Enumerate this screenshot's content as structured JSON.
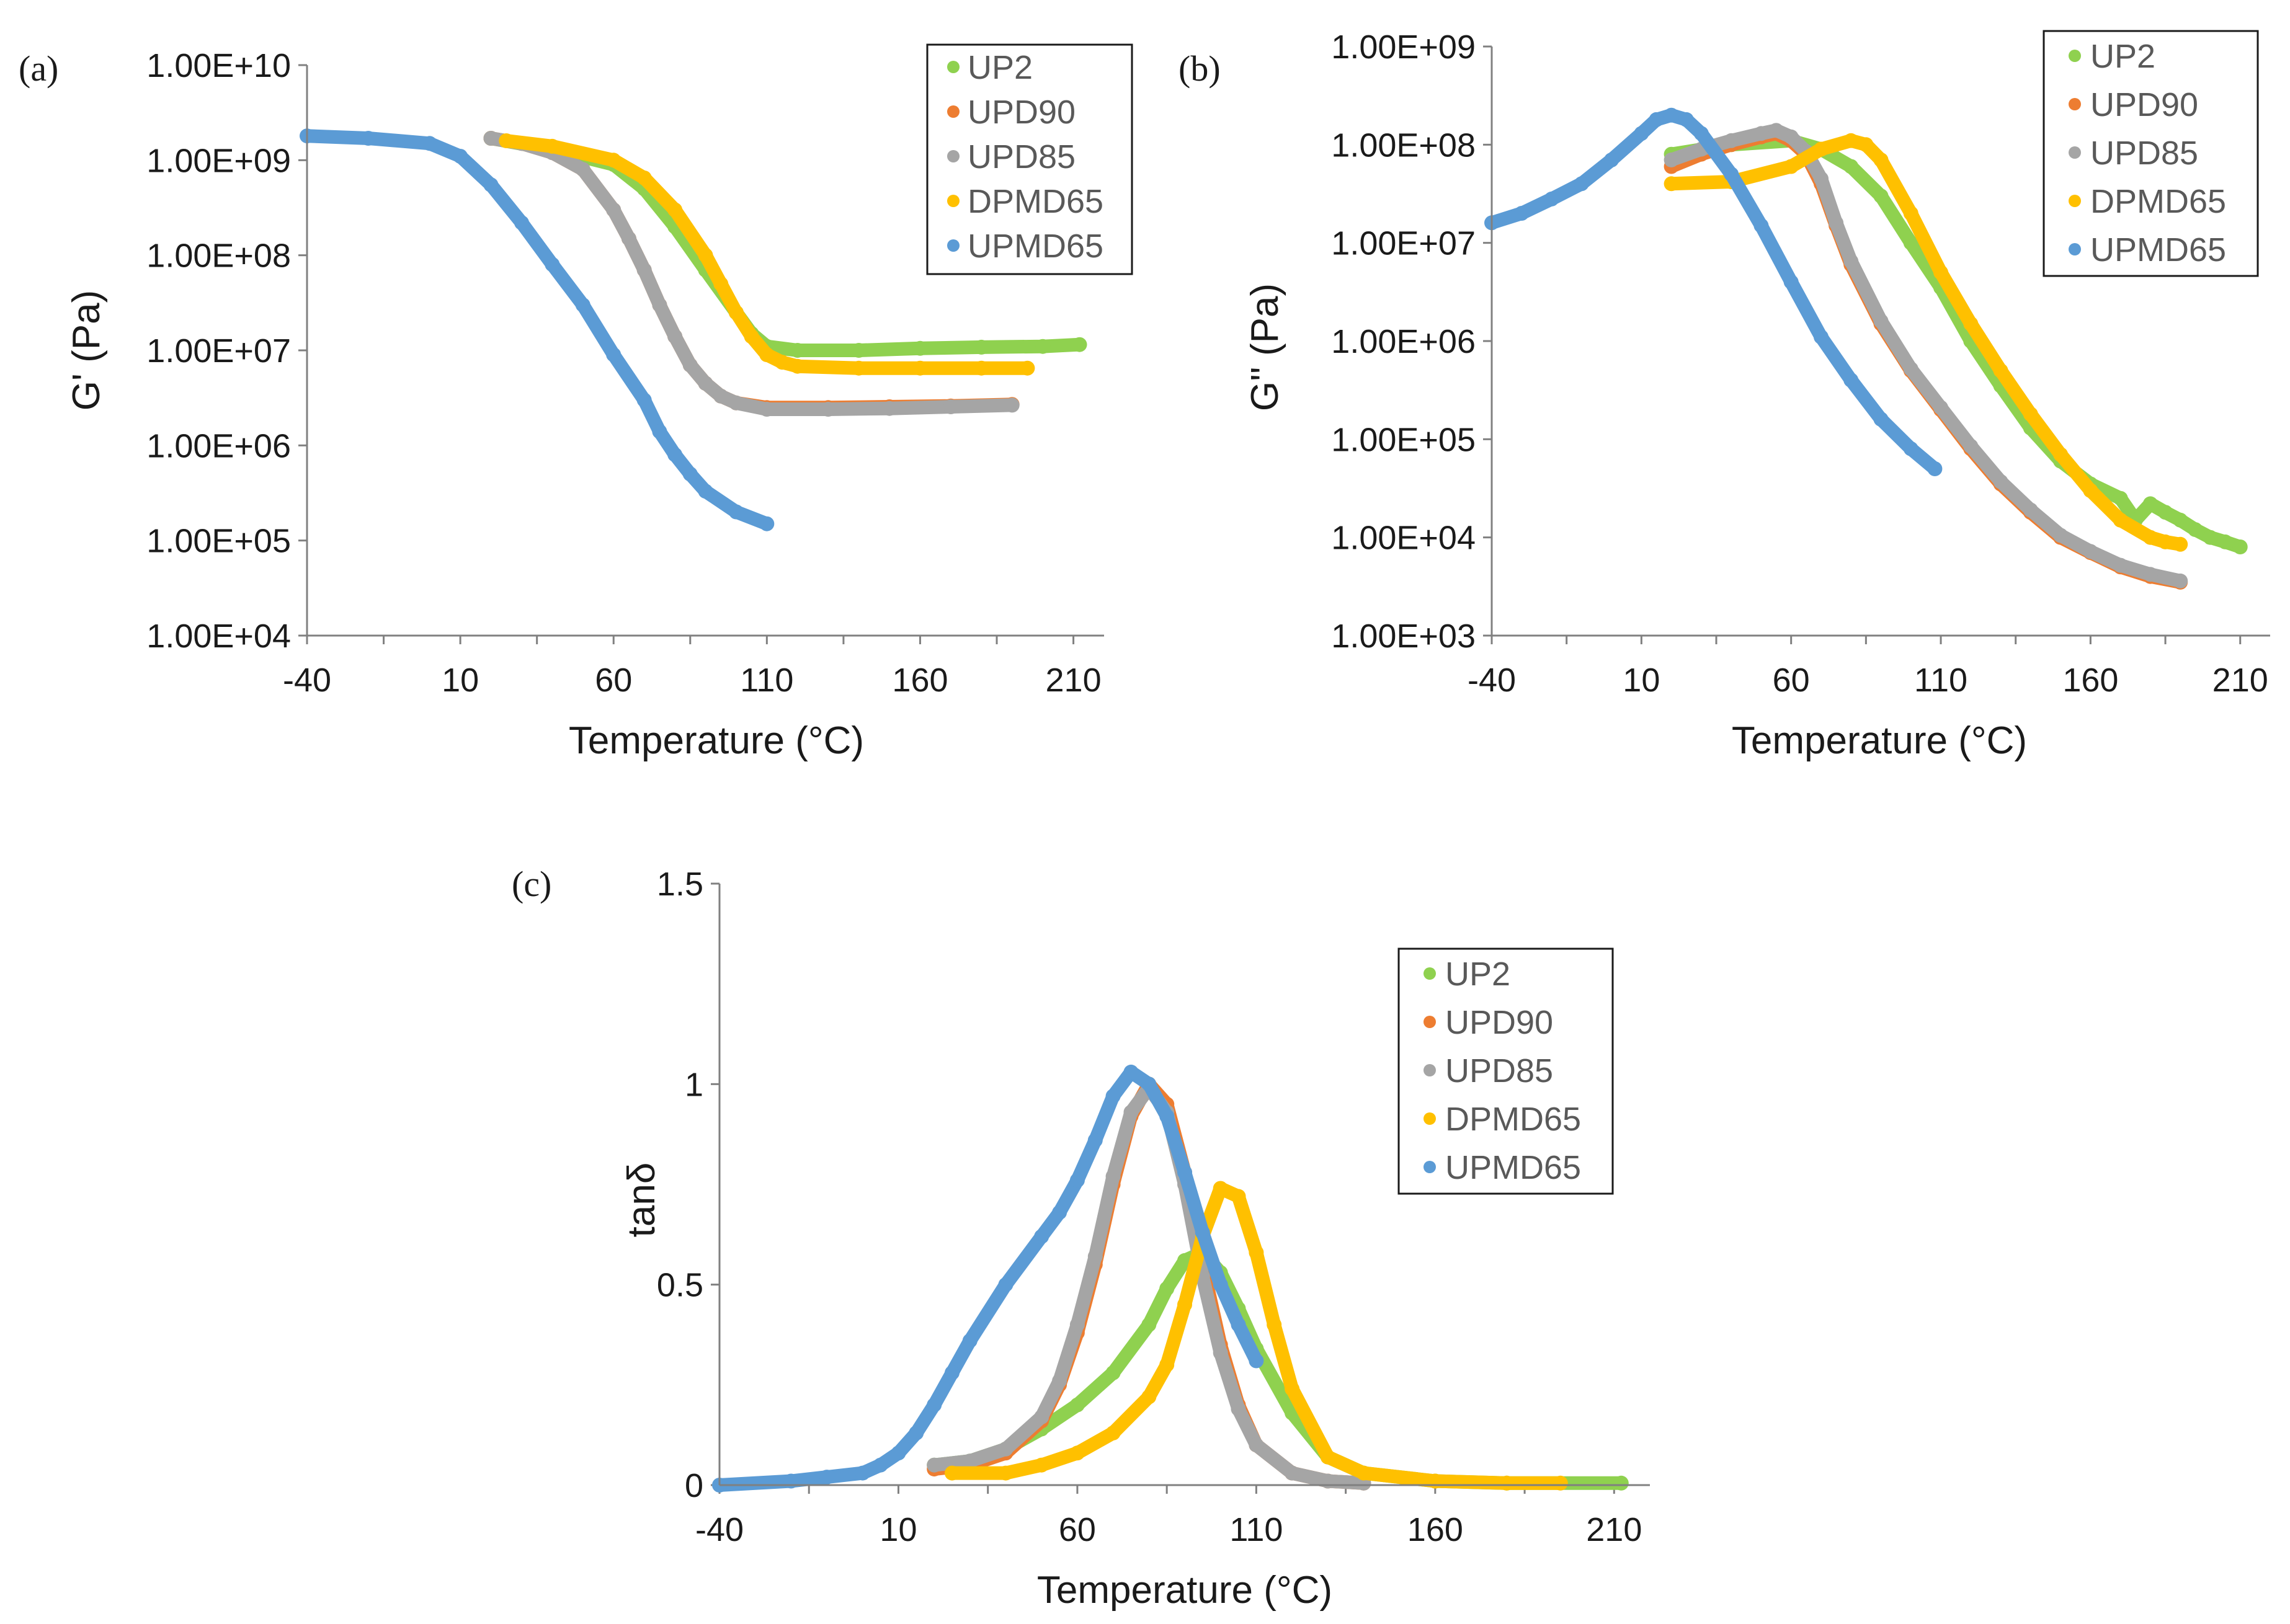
{
  "figure": {
    "series_colors": {
      "UP2": "#8fd14f",
      "UPD90": "#ed7d31",
      "UPD85": "#a5a5a5",
      "DPMD65": "#ffc000",
      "UPMD65": "#5b9bd5"
    }
  },
  "chart_data": [
    {
      "id": "a",
      "panel_label": "(a)",
      "type": "scatter",
      "yscale": "log",
      "xlabel": "Temperature (°C)",
      "ylabel": "G' (Pa)",
      "xlim": [
        -40,
        220
      ],
      "ylim": [
        10000,
        10000000000
      ],
      "x_tick_labels": [
        "-40",
        "10",
        "60",
        "110",
        "160",
        "210"
      ],
      "y_tick_labels": [
        "1.00E+04",
        "1.00E+05",
        "1.00E+06",
        "1.00E+07",
        "1.00E+08",
        "1.00E+09",
        "1.00E+10"
      ],
      "legend": [
        "UP2",
        "UPD90",
        "UPD85",
        "DPMD65",
        "UPMD65"
      ],
      "legend_position": "top-right",
      "series": [
        {
          "name": "UP2",
          "x": [
            20,
            40,
            60,
            70,
            80,
            90,
            100,
            105,
            110,
            120,
            140,
            160,
            180,
            200,
            212
          ],
          "y": [
            1700000000,
            1300000000,
            900000000,
            500000000,
            200000000,
            70000000,
            25000000,
            15000000,
            11000000,
            10000000,
            10000000,
            10500000,
            10800000,
            11000000,
            11500000
          ]
        },
        {
          "name": "UPD90",
          "x": [
            20,
            30,
            40,
            50,
            60,
            65,
            70,
            75,
            80,
            85,
            90,
            95,
            100,
            110,
            130,
            150,
            170,
            190
          ],
          "y": [
            1700000000,
            1500000000,
            1200000000,
            800000000,
            300000000,
            150000000,
            70000000,
            30000000,
            14000000,
            7000000,
            4500000,
            3300000,
            2800000,
            2500000,
            2500000,
            2550000,
            2600000,
            2700000
          ]
        },
        {
          "name": "UPD85",
          "x": [
            20,
            30,
            40,
            50,
            60,
            65,
            70,
            75,
            80,
            85,
            90,
            95,
            100,
            110,
            130,
            150,
            170,
            190
          ],
          "y": [
            1700000000,
            1500000000,
            1200000000,
            800000000,
            300000000,
            150000000,
            70000000,
            30000000,
            14000000,
            7000000,
            4500000,
            3300000,
            2800000,
            2400000,
            2400000,
            2450000,
            2550000,
            2650000
          ]
        },
        {
          "name": "DPMD65",
          "x": [
            25,
            40,
            60,
            70,
            80,
            90,
            95,
            100,
            105,
            110,
            115,
            120,
            140,
            160,
            180,
            195
          ],
          "y": [
            1600000000,
            1400000000,
            1000000000,
            650000000,
            300000000,
            100000000,
            50000000,
            25000000,
            14000000,
            9000000,
            7500000,
            6800000,
            6500000,
            6500000,
            6500000,
            6500000
          ]
        },
        {
          "name": "UPMD65",
          "x": [
            -40,
            -20,
            0,
            10,
            20,
            30,
            40,
            50,
            60,
            70,
            75,
            80,
            85,
            90,
            100,
            110
          ],
          "y": [
            1800000000,
            1700000000,
            1500000000,
            1100000000,
            550000000,
            220000000,
            80000000,
            30000000,
            9000000,
            3000000,
            1400000,
            800000,
            500000,
            330000,
            200000,
            150000
          ]
        }
      ]
    },
    {
      "id": "b",
      "panel_label": "(b)",
      "type": "scatter",
      "yscale": "log",
      "xlabel": "Temperature (°C)",
      "ylabel": "G'' (Pa)",
      "xlim": [
        -40,
        220
      ],
      "ylim": [
        1000,
        1000000000
      ],
      "x_tick_labels": [
        "-40",
        "10",
        "60",
        "110",
        "160",
        "210"
      ],
      "y_tick_labels": [
        "1.00E+03",
        "1.00E+04",
        "1.00E+05",
        "1.00E+06",
        "1.00E+07",
        "1.00E+08",
        "1.00E+09"
      ],
      "legend": [
        "UP2",
        "UPD90",
        "UPD85",
        "DPMD65",
        "UPMD65"
      ],
      "legend_position": "top-right",
      "series": [
        {
          "name": "UP2",
          "x": [
            20,
            40,
            60,
            70,
            80,
            90,
            100,
            110,
            120,
            130,
            140,
            150,
            160,
            170,
            175,
            180,
            185,
            190,
            195,
            200,
            205,
            210
          ],
          "y": [
            80000000,
            100000000,
            110000000,
            90000000,
            60000000,
            30000000,
            10000000,
            3500000,
            1000000,
            350000,
            130000,
            60000,
            35000,
            25000,
            15000,
            22000,
            18000,
            15000,
            12000,
            10000,
            9000,
            8000
          ]
        },
        {
          "name": "UPD90",
          "x": [
            20,
            30,
            40,
            50,
            55,
            60,
            65,
            70,
            75,
            80,
            90,
            100,
            110,
            120,
            130,
            140,
            150,
            160,
            170,
            180,
            190
          ],
          "y": [
            60000000,
            80000000,
            100000000,
            120000000,
            130000000,
            110000000,
            80000000,
            40000000,
            15000000,
            6000000,
            1500000,
            500000,
            200000,
            80000,
            35000,
            18000,
            10000,
            7000,
            5000,
            4000,
            3500
          ]
        },
        {
          "name": "UPD85",
          "x": [
            20,
            30,
            40,
            50,
            55,
            60,
            65,
            70,
            75,
            80,
            90,
            100,
            110,
            120,
            130,
            140,
            150,
            160,
            170,
            180,
            190
          ],
          "y": [
            70000000,
            90000000,
            110000000,
            130000000,
            140000000,
            120000000,
            85000000,
            45000000,
            16000000,
            6500000,
            1600000,
            520000,
            210000,
            85000,
            37000,
            19000,
            10500,
            7200,
            5200,
            4200,
            3600
          ]
        },
        {
          "name": "DPMD65",
          "x": [
            20,
            40,
            60,
            70,
            80,
            85,
            90,
            100,
            110,
            120,
            130,
            140,
            150,
            160,
            170,
            180,
            185,
            190
          ],
          "y": [
            40000000,
            42000000,
            60000000,
            90000000,
            110000000,
            100000000,
            70000000,
            20000000,
            5000000,
            1500000,
            500000,
            180000,
            70000,
            30000,
            15000,
            10000,
            9000,
            8500
          ]
        },
        {
          "name": "UPMD65",
          "x": [
            -40,
            -30,
            -20,
            -10,
            0,
            10,
            15,
            20,
            25,
            30,
            40,
            50,
            60,
            70,
            80,
            90,
            100,
            108
          ],
          "y": [
            16000000,
            20000000,
            28000000,
            40000000,
            70000000,
            130000000,
            180000000,
            200000000,
            180000000,
            130000000,
            50000000,
            15000000,
            4000000,
            1100000,
            400000,
            160000,
            80000,
            50000
          ]
        }
      ]
    },
    {
      "id": "c",
      "panel_label": "(c)",
      "type": "scatter",
      "yscale": "linear",
      "xlabel": "Temperature (°C)",
      "ylabel": "tanδ",
      "xlim": [
        -40,
        220
      ],
      "ylim": [
        0,
        1.5
      ],
      "x_tick_labels": [
        "-40",
        "10",
        "60",
        "110",
        "160",
        "210"
      ],
      "y_tick_labels": [
        "0",
        "0.5",
        "1",
        "1.5"
      ],
      "legend": [
        "UP2",
        "UPD90",
        "UPD85",
        "DPMD65",
        "UPMD65"
      ],
      "legend_position": "upper-right-inside",
      "series": [
        {
          "name": "UP2",
          "x": [
            20,
            30,
            40,
            50,
            60,
            70,
            80,
            85,
            90,
            95,
            100,
            105,
            110,
            120,
            130,
            140,
            160,
            180,
            212
          ],
          "y": [
            0.05,
            0.06,
            0.09,
            0.14,
            0.2,
            0.28,
            0.4,
            0.49,
            0.56,
            0.58,
            0.53,
            0.44,
            0.34,
            0.18,
            0.07,
            0.03,
            0.01,
            0.005,
            0.005
          ]
        },
        {
          "name": "UPD90",
          "x": [
            20,
            30,
            40,
            50,
            55,
            60,
            65,
            70,
            75,
            80,
            85,
            90,
            95,
            100,
            105,
            110,
            120,
            130,
            140
          ],
          "y": [
            0.04,
            0.05,
            0.08,
            0.16,
            0.25,
            0.38,
            0.55,
            0.75,
            0.92,
            1.0,
            0.95,
            0.78,
            0.55,
            0.35,
            0.2,
            0.1,
            0.03,
            0.01,
            0.005
          ]
        },
        {
          "name": "UPD85",
          "x": [
            20,
            30,
            40,
            50,
            55,
            60,
            65,
            70,
            75,
            80,
            85,
            90,
            95,
            100,
            105,
            110,
            120,
            130,
            140
          ],
          "y": [
            0.05,
            0.06,
            0.09,
            0.17,
            0.26,
            0.4,
            0.57,
            0.77,
            0.93,
            0.99,
            0.93,
            0.75,
            0.52,
            0.33,
            0.19,
            0.1,
            0.03,
            0.01,
            0.005
          ]
        },
        {
          "name": "DPMD65",
          "x": [
            25,
            40,
            50,
            60,
            70,
            80,
            85,
            90,
            95,
            100,
            105,
            110,
            115,
            120,
            130,
            140,
            160,
            180,
            195
          ],
          "y": [
            0.03,
            0.03,
            0.05,
            0.08,
            0.13,
            0.22,
            0.3,
            0.45,
            0.62,
            0.74,
            0.72,
            0.58,
            0.4,
            0.24,
            0.07,
            0.03,
            0.01,
            0.005,
            0.005
          ]
        },
        {
          "name": "UPMD65",
          "x": [
            -40,
            -20,
            -10,
            0,
            5,
            10,
            15,
            20,
            25,
            30,
            40,
            50,
            55,
            60,
            65,
            70,
            75,
            80,
            85,
            90,
            95,
            100,
            105,
            110
          ],
          "y": [
            0.0,
            0.01,
            0.02,
            0.03,
            0.05,
            0.08,
            0.13,
            0.2,
            0.28,
            0.36,
            0.5,
            0.62,
            0.68,
            0.76,
            0.86,
            0.97,
            1.03,
            1.0,
            0.92,
            0.78,
            0.63,
            0.5,
            0.4,
            0.31
          ]
        }
      ]
    }
  ]
}
